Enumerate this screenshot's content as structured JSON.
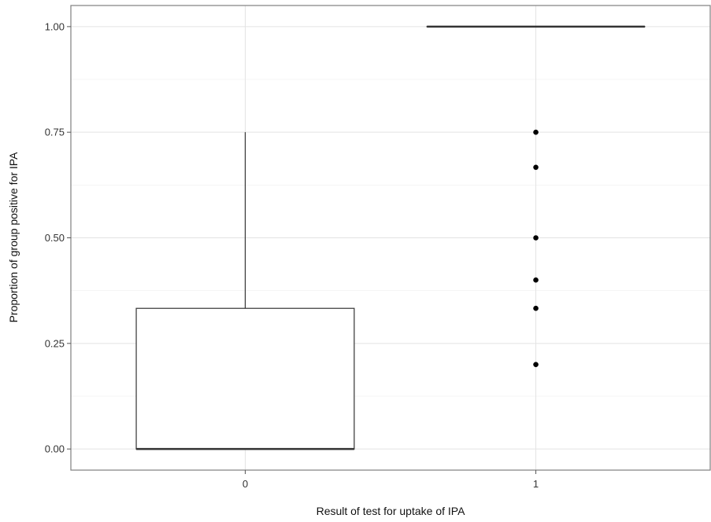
{
  "chart_data": {
    "type": "boxplot",
    "xlabel": "Result of test for uptake of IPA",
    "ylabel": "Proportion of group positive for IPA",
    "categories": [
      "0",
      "1"
    ],
    "y_ticks": [
      "0.00",
      "0.25",
      "0.50",
      "0.75",
      "1.00"
    ],
    "ylim": [
      -0.05,
      1.05
    ],
    "grid": true,
    "boxes": [
      {
        "category": "0",
        "min": 0.0,
        "q1": 0.0,
        "median": 0.0,
        "q3": 0.333,
        "max": 0.75,
        "outliers": []
      },
      {
        "category": "1",
        "min": 1.0,
        "q1": 1.0,
        "median": 1.0,
        "q3": 1.0,
        "max": 1.0,
        "outliers": [
          0.75,
          0.667,
          0.5,
          0.4,
          0.333,
          0.2
        ]
      }
    ]
  }
}
